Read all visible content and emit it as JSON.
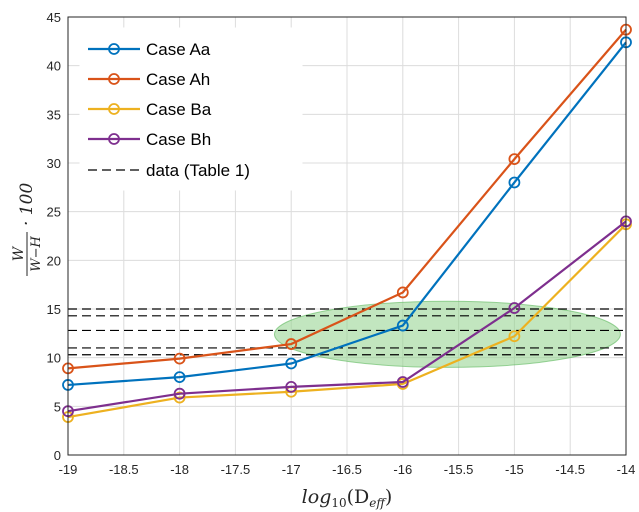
{
  "chart_data": {
    "type": "line",
    "xlabel_main": "log",
    "xlabel_sub": "10",
    "xlabel_arg": "(D",
    "xlabel_argsub": "eff",
    "xlabel_close": ")",
    "ylabel_num": "W",
    "ylabel_den": "W−H",
    "ylabel_tail": "· 100",
    "xlim": [
      -19,
      -14
    ],
    "ylim": [
      0,
      45
    ],
    "xticks": [
      "-19",
      "-18.5",
      "-18",
      "-17.5",
      "-17",
      "-16.5",
      "-16",
      "-15.5",
      "-15",
      "-14.5",
      "-14"
    ],
    "yticks": [
      "0",
      "5",
      "10",
      "15",
      "20",
      "25",
      "30",
      "35",
      "40",
      "45"
    ],
    "grid": true,
    "legend_position": "top-left",
    "x": [
      -19,
      -18,
      -17,
      -16,
      -15,
      -14
    ],
    "series": [
      {
        "name": "Case Aa",
        "color": "#0072BD",
        "values": [
          7.2,
          8.0,
          9.4,
          13.3,
          28.0,
          42.4
        ]
      },
      {
        "name": "Case Ah",
        "color": "#D95319",
        "values": [
          8.9,
          9.9,
          11.4,
          16.7,
          30.4,
          43.7
        ]
      },
      {
        "name": "Case Ba",
        "color": "#EDB120",
        "values": [
          3.9,
          5.9,
          6.5,
          7.3,
          12.2,
          23.7
        ]
      },
      {
        "name": "Case Bh",
        "color": "#7E2F8E",
        "values": [
          4.5,
          6.3,
          7.0,
          7.5,
          15.1,
          24.0
        ]
      }
    ],
    "reference_lines": {
      "name": "data (Table 1)",
      "color": "#000000",
      "values": [
        15.0,
        14.3,
        12.8,
        11.0,
        10.3
      ]
    },
    "highlight_ellipse": {
      "color": "#8fd18a",
      "center": [
        -15.6,
        12.4
      ],
      "half_width": 1.55,
      "half_height": 3.4
    }
  }
}
